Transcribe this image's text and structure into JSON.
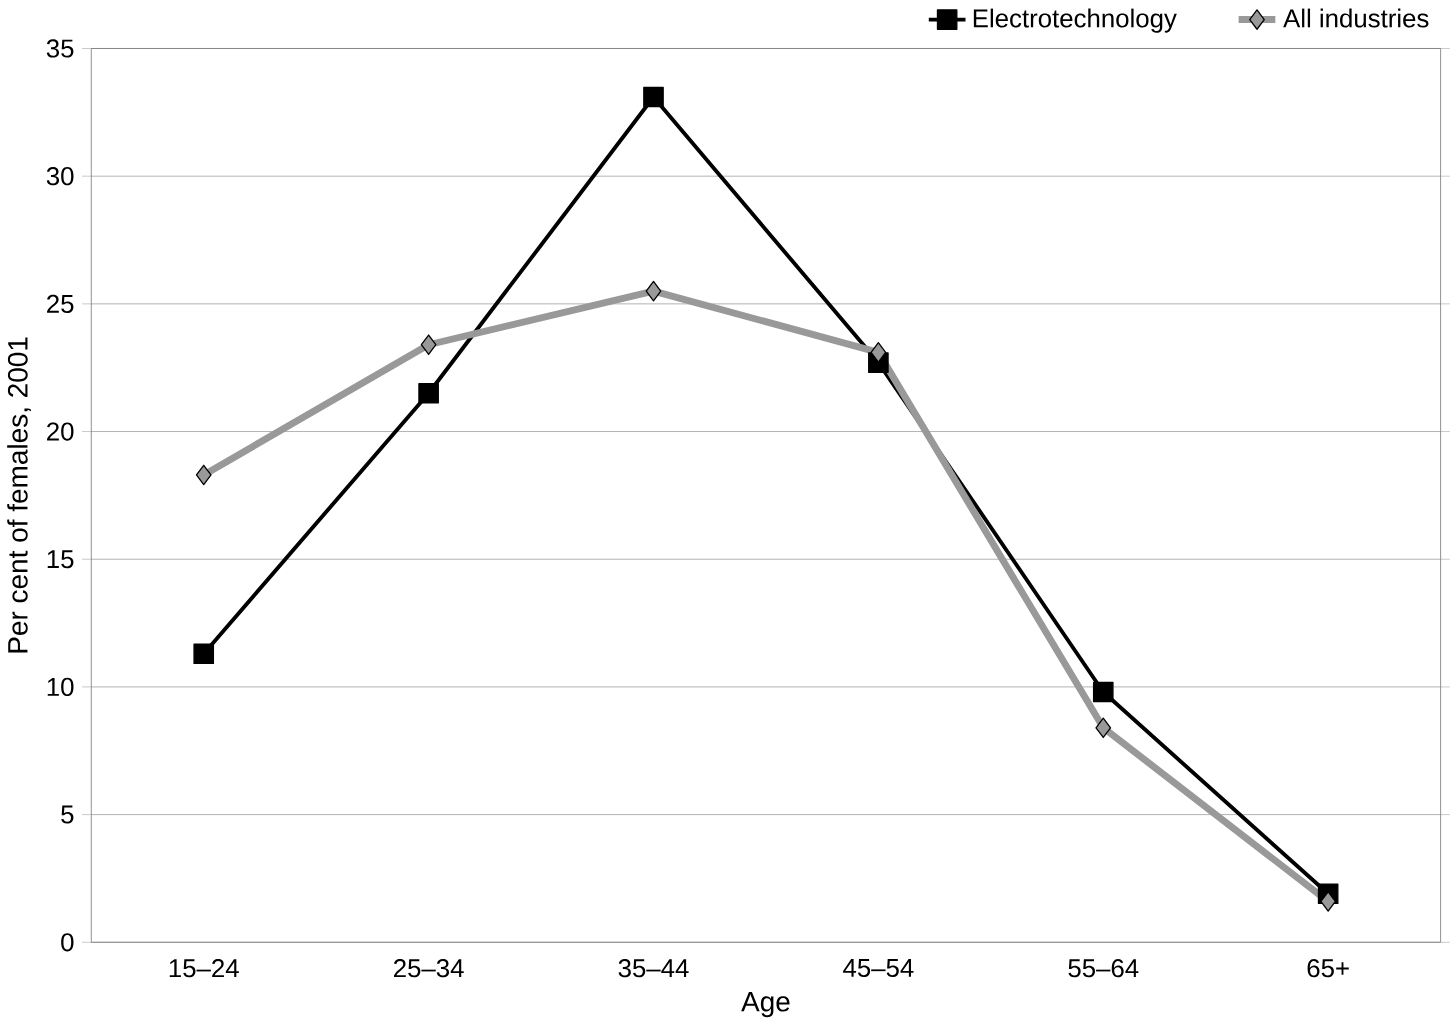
{
  "chart_data": {
    "type": "line",
    "xlabel": "Age",
    "ylabel": "Per cent of females, 2001",
    "categories": [
      "15–24",
      "25–34",
      "35–44",
      "45–54",
      "55–64",
      "65+"
    ],
    "series": [
      {
        "name": "Electrotechnology",
        "color": "#000000",
        "marker": "square",
        "values": [
          11.3,
          21.5,
          33.1,
          22.7,
          9.8,
          1.9
        ]
      },
      {
        "name": "All industries",
        "color": "#999999",
        "marker": "diamond",
        "values": [
          18.3,
          23.4,
          25.5,
          23.1,
          8.4,
          1.6
        ]
      }
    ],
    "ylim": [
      0,
      35
    ],
    "yticks": [
      0,
      5,
      10,
      15,
      20,
      25,
      30,
      35
    ],
    "grid": "y",
    "legend": "top right"
  }
}
